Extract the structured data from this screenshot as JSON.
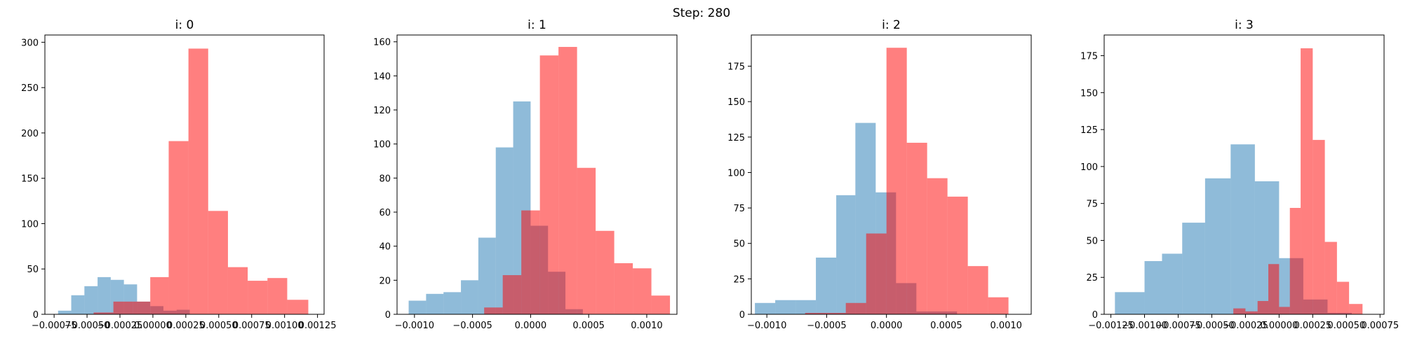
{
  "figure": {
    "suptitle": "Step: 280"
  },
  "colors": {
    "blue": "#1f77b4",
    "red": "#ff0000"
  },
  "chart_data": [
    {
      "type": "histogram",
      "title": "i: 0",
      "xlim": [
        -0.00082,
        0.0013
      ],
      "ylim": [
        0,
        308
      ],
      "xticks": [
        -0.00075,
        -0.0005,
        -0.00025,
        0.0,
        0.00025,
        0.0005,
        0.00075,
        0.001,
        0.00125
      ],
      "xtick_labels": [
        "−0.00075",
        "−0.00050",
        "−0.00025",
        "0.00000",
        "0.00025",
        "0.00050",
        "0.00075",
        "0.00100",
        "0.00125"
      ],
      "yticks": [
        0,
        50,
        100,
        150,
        200,
        250,
        300
      ],
      "ytick_labels": [
        "0",
        "50",
        "100",
        "150",
        "200",
        "250",
        "300"
      ],
      "series": [
        {
          "color": "blue",
          "alpha": 0.5,
          "edges": [
            -0.00072,
            -0.00062,
            -0.00052,
            -0.00042,
            -0.00032,
            -0.00022,
            -0.00012,
            -2e-05,
            8e-05,
            0.00018,
            0.00028
          ],
          "values": [
            4,
            21,
            31,
            41,
            38,
            33,
            14,
            9,
            4,
            5,
            0
          ]
        },
        {
          "color": "red",
          "alpha": 0.5,
          "edges": [
            -0.00045,
            -0.0003,
            -0.00015,
            -2e-05,
            0.00012,
            0.00027,
            0.00042,
            0.00057,
            0.00072,
            0.00087,
            0.00102,
            0.00118
          ],
          "values": [
            2,
            14,
            14,
            41,
            191,
            293,
            114,
            52,
            37,
            40,
            16
          ]
        }
      ]
    },
    {
      "type": "histogram",
      "title": "i: 1",
      "xlim": [
        -0.00115,
        0.00126
      ],
      "ylim": [
        0,
        164
      ],
      "xticks": [
        -0.001,
        -0.0005,
        0.0,
        0.0005,
        0.001
      ],
      "xtick_labels": [
        "−0.0010",
        "−0.0005",
        "0.0000",
        "0.0005",
        "0.0010"
      ],
      "yticks": [
        0,
        20,
        40,
        60,
        80,
        100,
        120,
        140,
        160
      ],
      "ytick_labels": [
        "0",
        "20",
        "40",
        "60",
        "80",
        "100",
        "120",
        "140",
        "160"
      ],
      "series": [
        {
          "color": "blue",
          "alpha": 0.5,
          "edges": [
            -0.00105,
            -0.0009,
            -0.00075,
            -0.0006,
            -0.00045,
            -0.0003,
            -0.00015,
            0.0,
            0.00015,
            0.0003,
            0.00045
          ],
          "values": [
            8,
            12,
            13,
            20,
            45,
            98,
            125,
            52,
            25,
            3,
            0
          ]
        },
        {
          "color": "red",
          "alpha": 0.5,
          "edges": [
            -0.0004,
            -0.00024,
            -8e-05,
            8e-05,
            0.00024,
            0.0004,
            0.00056,
            0.00072,
            0.00088,
            0.00104,
            0.0012
          ],
          "values": [
            4,
            23,
            61,
            152,
            157,
            86,
            49,
            30,
            27,
            11
          ]
        }
      ]
    },
    {
      "type": "histogram",
      "title": "i: 2",
      "xlim": [
        -0.00113,
        0.00121
      ],
      "ylim": [
        0,
        197
      ],
      "xticks": [
        -0.001,
        -0.0005,
        0.0,
        0.0005,
        0.001
      ],
      "xtick_labels": [
        "−0.0010",
        "−0.0005",
        "0.0000",
        "0.0005",
        "0.0010"
      ],
      "yticks": [
        0,
        25,
        50,
        75,
        100,
        125,
        150,
        175
      ],
      "ytick_labels": [
        "0",
        "25",
        "50",
        "75",
        "100",
        "125",
        "150",
        "175"
      ],
      "series": [
        {
          "color": "blue",
          "alpha": 0.5,
          "edges": [
            -0.0011,
            -0.00093,
            -0.00076,
            -0.00059,
            -0.00042,
            -0.00026,
            -9e-05,
            8e-05,
            0.00025,
            0.00042,
            0.00059,
            0.00076
          ],
          "values": [
            8,
            10,
            10,
            40,
            84,
            135,
            86,
            22,
            2,
            2,
            0
          ]
        },
        {
          "color": "red",
          "alpha": 0.5,
          "edges": [
            -0.00068,
            -0.00051,
            -0.00034,
            -0.00017,
            0.0,
            0.00017,
            0.00034,
            0.00051,
            0.00068,
            0.00085,
            0.00102,
            0.00115
          ],
          "values": [
            1,
            1,
            8,
            57,
            188,
            121,
            96,
            83,
            34,
            12,
            0
          ]
        }
      ]
    },
    {
      "type": "histogram",
      "title": "i: 3",
      "xlim": [
        -0.0013,
        0.00078
      ],
      "ylim": [
        0,
        189
      ],
      "xticks": [
        -0.00125,
        -0.001,
        -0.00075,
        -0.0005,
        -0.00025,
        0.0,
        0.00025,
        0.0005,
        0.00075
      ],
      "xtick_labels": [
        "−0.00125",
        "−0.00100",
        "−0.00075",
        "−0.00050",
        "−0.00025",
        "0.00000",
        "0.00025",
        "0.00050",
        "0.00075"
      ],
      "yticks": [
        0,
        25,
        50,
        75,
        100,
        125,
        150,
        175
      ],
      "ytick_labels": [
        "0",
        "25",
        "50",
        "75",
        "100",
        "125",
        "150",
        "175"
      ],
      "series": [
        {
          "color": "blue",
          "alpha": 0.5,
          "edges": [
            -0.00122,
            -0.001,
            -0.00087,
            -0.00072,
            -0.00055,
            -0.00036,
            -0.00018,
            0.0,
            0.00018,
            0.00036,
            0.00054
          ],
          "values": [
            15,
            36,
            41,
            62,
            92,
            115,
            90,
            38,
            10,
            1,
            0
          ]
        },
        {
          "color": "red",
          "alpha": 0.5,
          "edges": [
            -0.00034,
            -0.00025,
            -0.00016,
            -8e-05,
            0.0,
            8e-05,
            0.00016,
            0.00025,
            0.00034,
            0.00043,
            0.00052,
            0.00062,
            0.00071
          ],
          "values": [
            4,
            2,
            9,
            34,
            5,
            72,
            180,
            118,
            49,
            22,
            7,
            0
          ]
        }
      ]
    }
  ]
}
